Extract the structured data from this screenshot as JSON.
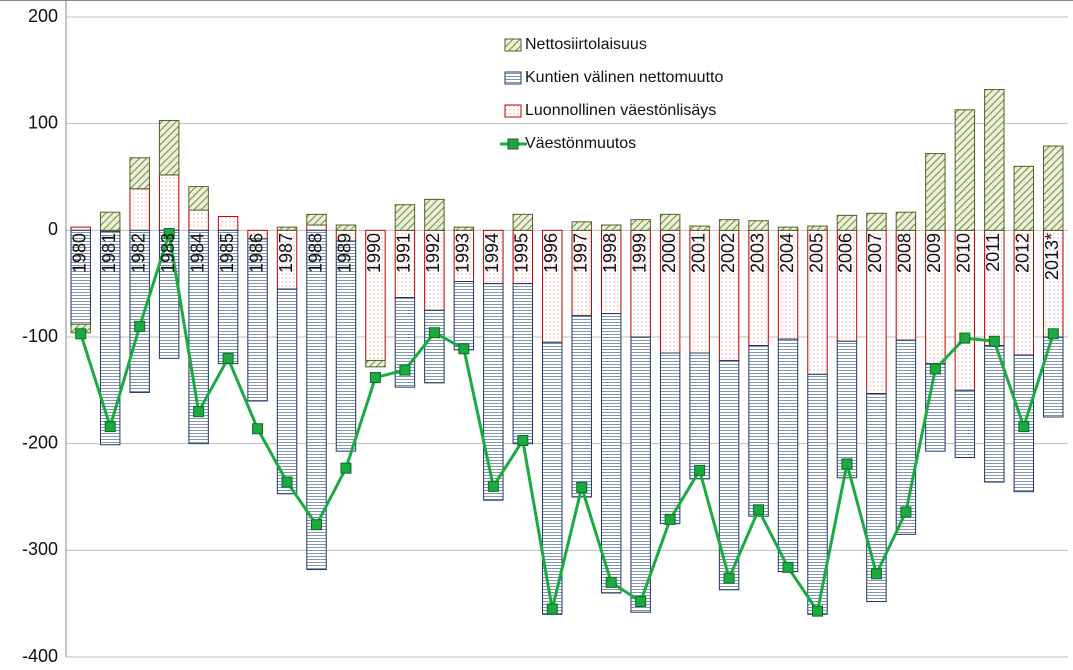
{
  "chart_data": {
    "type": "bar",
    "stacked": true,
    "categories": [
      "1980",
      "1981",
      "1982",
      "1983",
      "1984",
      "1985",
      "1986",
      "1987",
      "1988",
      "1989",
      "1990",
      "1991",
      "1992",
      "1993",
      "1994",
      "1995",
      "1996",
      "1997",
      "1998",
      "1999",
      "2000",
      "2001",
      "2002",
      "2003",
      "2004",
      "2005",
      "2006",
      "2007",
      "2008",
      "2009",
      "2010",
      "2011",
      "2012",
      "2013*"
    ],
    "series": [
      {
        "name": "Luonnollinen väestönlisäys",
        "type": "bar",
        "pattern": "dots",
        "color": "#c00000",
        "values": [
          3,
          -1,
          39,
          52,
          19,
          13,
          -8,
          -55,
          5,
          -10,
          -122,
          -63,
          -75,
          -48,
          -50,
          -50,
          -105,
          -80,
          -78,
          -100,
          -115,
          -115,
          -122,
          -108,
          -102,
          -135,
          -104,
          -153,
          -103,
          -125,
          -150,
          -108,
          -117,
          -100
        ]
      },
      {
        "name": "Kuntien välinen nettomuutto",
        "type": "bar",
        "pattern": "hlines",
        "color": "#1f3864",
        "values": [
          -88,
          -200,
          -152,
          -120,
          -200,
          -125,
          -152,
          -192,
          -318,
          -197,
          0,
          -84,
          -68,
          -64,
          -203,
          -150,
          -255,
          -170,
          -262,
          -258,
          -160,
          -118,
          -215,
          -160,
          -218,
          -225,
          -128,
          -195,
          -182,
          -82,
          -63,
          -128,
          -128,
          -75
        ]
      },
      {
        "name": "Nettosiirtolaisuus",
        "type": "bar",
        "pattern": "diagonal",
        "color": "#4f6228",
        "values": [
          -8,
          17,
          29,
          51,
          22,
          0,
          0,
          3,
          10,
          5,
          -6,
          24,
          29,
          3,
          0,
          15,
          0,
          8,
          5,
          10,
          15,
          4,
          10,
          9,
          3,
          4,
          14,
          16,
          17,
          72,
          113,
          132,
          60,
          79
        ]
      },
      {
        "name": "Väestönmuutos",
        "type": "line",
        "color": "#1aab40",
        "values": [
          -97,
          -184,
          -90,
          -3,
          -170,
          -120,
          -186,
          -236,
          -276,
          -223,
          -138,
          -131,
          -96,
          -111,
          -240,
          -197,
          -355,
          -241,
          -330,
          -348,
          -271,
          -225,
          -326,
          -262,
          -316,
          -357,
          -219,
          -322,
          -264,
          -130,
          -101,
          -104,
          -184,
          -97
        ]
      }
    ],
    "ylim": [
      -400,
      200
    ],
    "yticks": [
      -400,
      -300,
      -200,
      -100,
      0,
      100,
      200
    ],
    "grid": true
  }
}
